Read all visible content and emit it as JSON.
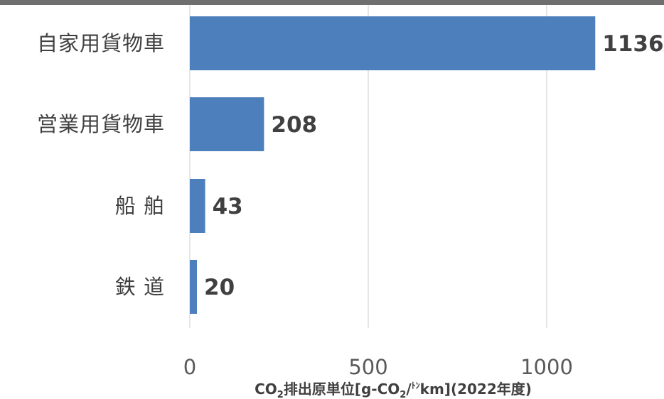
{
  "chart_data": {
    "type": "bar",
    "orientation": "horizontal",
    "categories": [
      "自家用貨物車",
      "営業用貨物車",
      "船 舶",
      "鉄 道"
    ],
    "values": [
      1136,
      208,
      43,
      20
    ],
    "data_labels": [
      "1136",
      "208",
      "43",
      "20"
    ],
    "xlabel": {
      "prefix": "CO",
      "sub1": "2",
      "middle": "排出原単位[g-CO",
      "sub2": "2",
      "slash": "/",
      "sup": "ﾄﾝ",
      "suffix": "km](2022年度)"
    },
    "xlim": [
      0,
      1000
    ],
    "ticks": [
      0,
      500,
      1000
    ],
    "tick_labels": [
      "0",
      "500",
      "1000"
    ],
    "grid": true,
    "colors": {
      "bar": "#4e7fbd",
      "grid": "#d9d9d9",
      "top_band": "#6f6f6f"
    }
  }
}
